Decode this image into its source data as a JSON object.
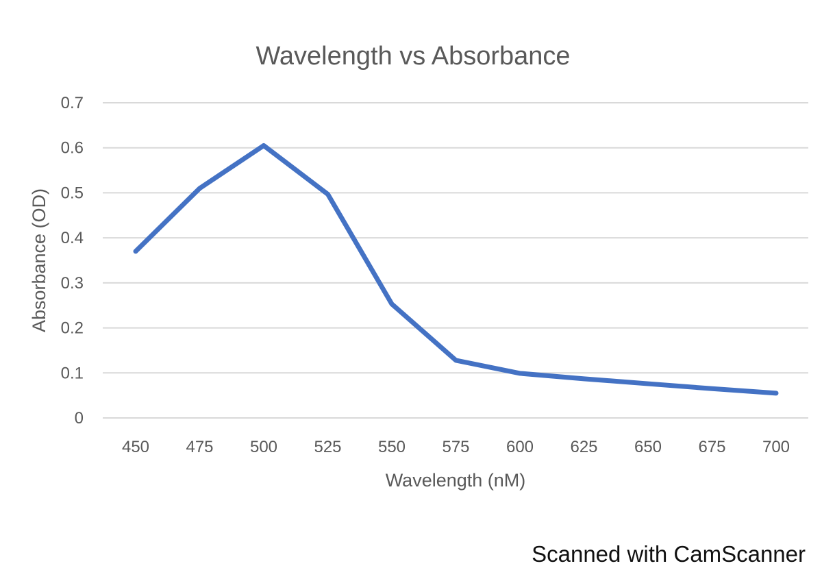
{
  "chart_data": {
    "type": "line",
    "title": "Wavelength vs Absorbance",
    "xlabel": "Wavelength (nM)",
    "ylabel": "Absorbance (OD)",
    "categories": [
      "450",
      "475",
      "500",
      "525",
      "550",
      "575",
      "600",
      "625",
      "650",
      "675",
      "700"
    ],
    "series": [
      {
        "values": [
          0.37,
          0.51,
          0.605,
          0.497,
          0.253,
          0.128,
          0.099,
          0.087,
          0.076,
          0.065,
          0.055
        ]
      }
    ],
    "y_ticks": [
      "0",
      "0.1",
      "0.2",
      "0.3",
      "0.4",
      "0.5",
      "0.6",
      "0.7"
    ],
    "ylim": [
      0,
      0.7
    ],
    "grid": true,
    "legend": "none",
    "line_color": "#4472c4",
    "grid_color": "#d9d9d9"
  },
  "watermark": "Scanned with CamScanner"
}
